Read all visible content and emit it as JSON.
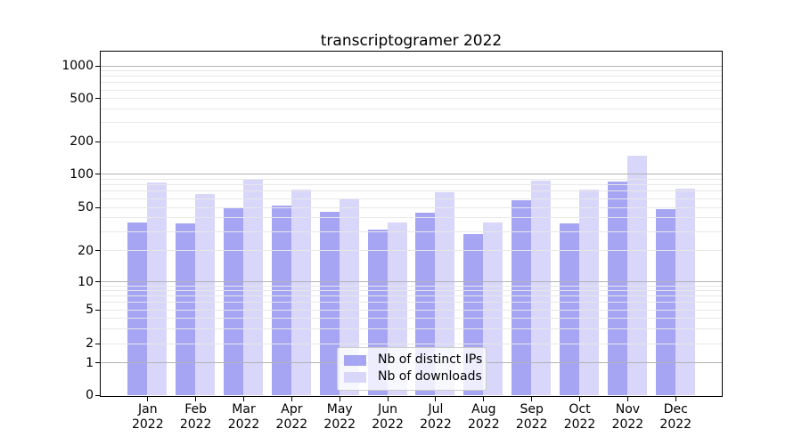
{
  "title": "transcriptogramer 2022",
  "chart_data": {
    "type": "bar",
    "title": "transcriptogramer 2022",
    "categories": [
      "Jan 2022",
      "Feb 2022",
      "Mar 2022",
      "Apr 2022",
      "May 2022",
      "Jun 2022",
      "Jul 2022",
      "Aug 2022",
      "Sep 2022",
      "Oct 2022",
      "Nov 2022",
      "Dec 2022"
    ],
    "series": [
      {
        "name": "Nb of distinct IPs",
        "color": "#a6a5f4",
        "values": [
          36,
          35,
          50,
          51,
          45,
          31,
          44,
          28,
          57,
          35,
          85,
          48
        ]
      },
      {
        "name": "Nb of downloads",
        "color": "#d8d7f9",
        "values": [
          84,
          65,
          90,
          72,
          60,
          36,
          68,
          36,
          87,
          72,
          146,
          73
        ]
      }
    ],
    "xlabel": "",
    "ylabel": "",
    "yscale": "symlog",
    "yticks": [
      0,
      1,
      2,
      5,
      10,
      20,
      50,
      100,
      200,
      500,
      1000
    ],
    "ylim": [
      0,
      1000
    ],
    "grid": "horizontal-major-and-minor",
    "legend_position": "lower center",
    "colors": {
      "major_grid": "#b3b3b3",
      "minor_grid": "#e7e7e7",
      "axis": "#000000",
      "background": "#ffffff"
    }
  }
}
